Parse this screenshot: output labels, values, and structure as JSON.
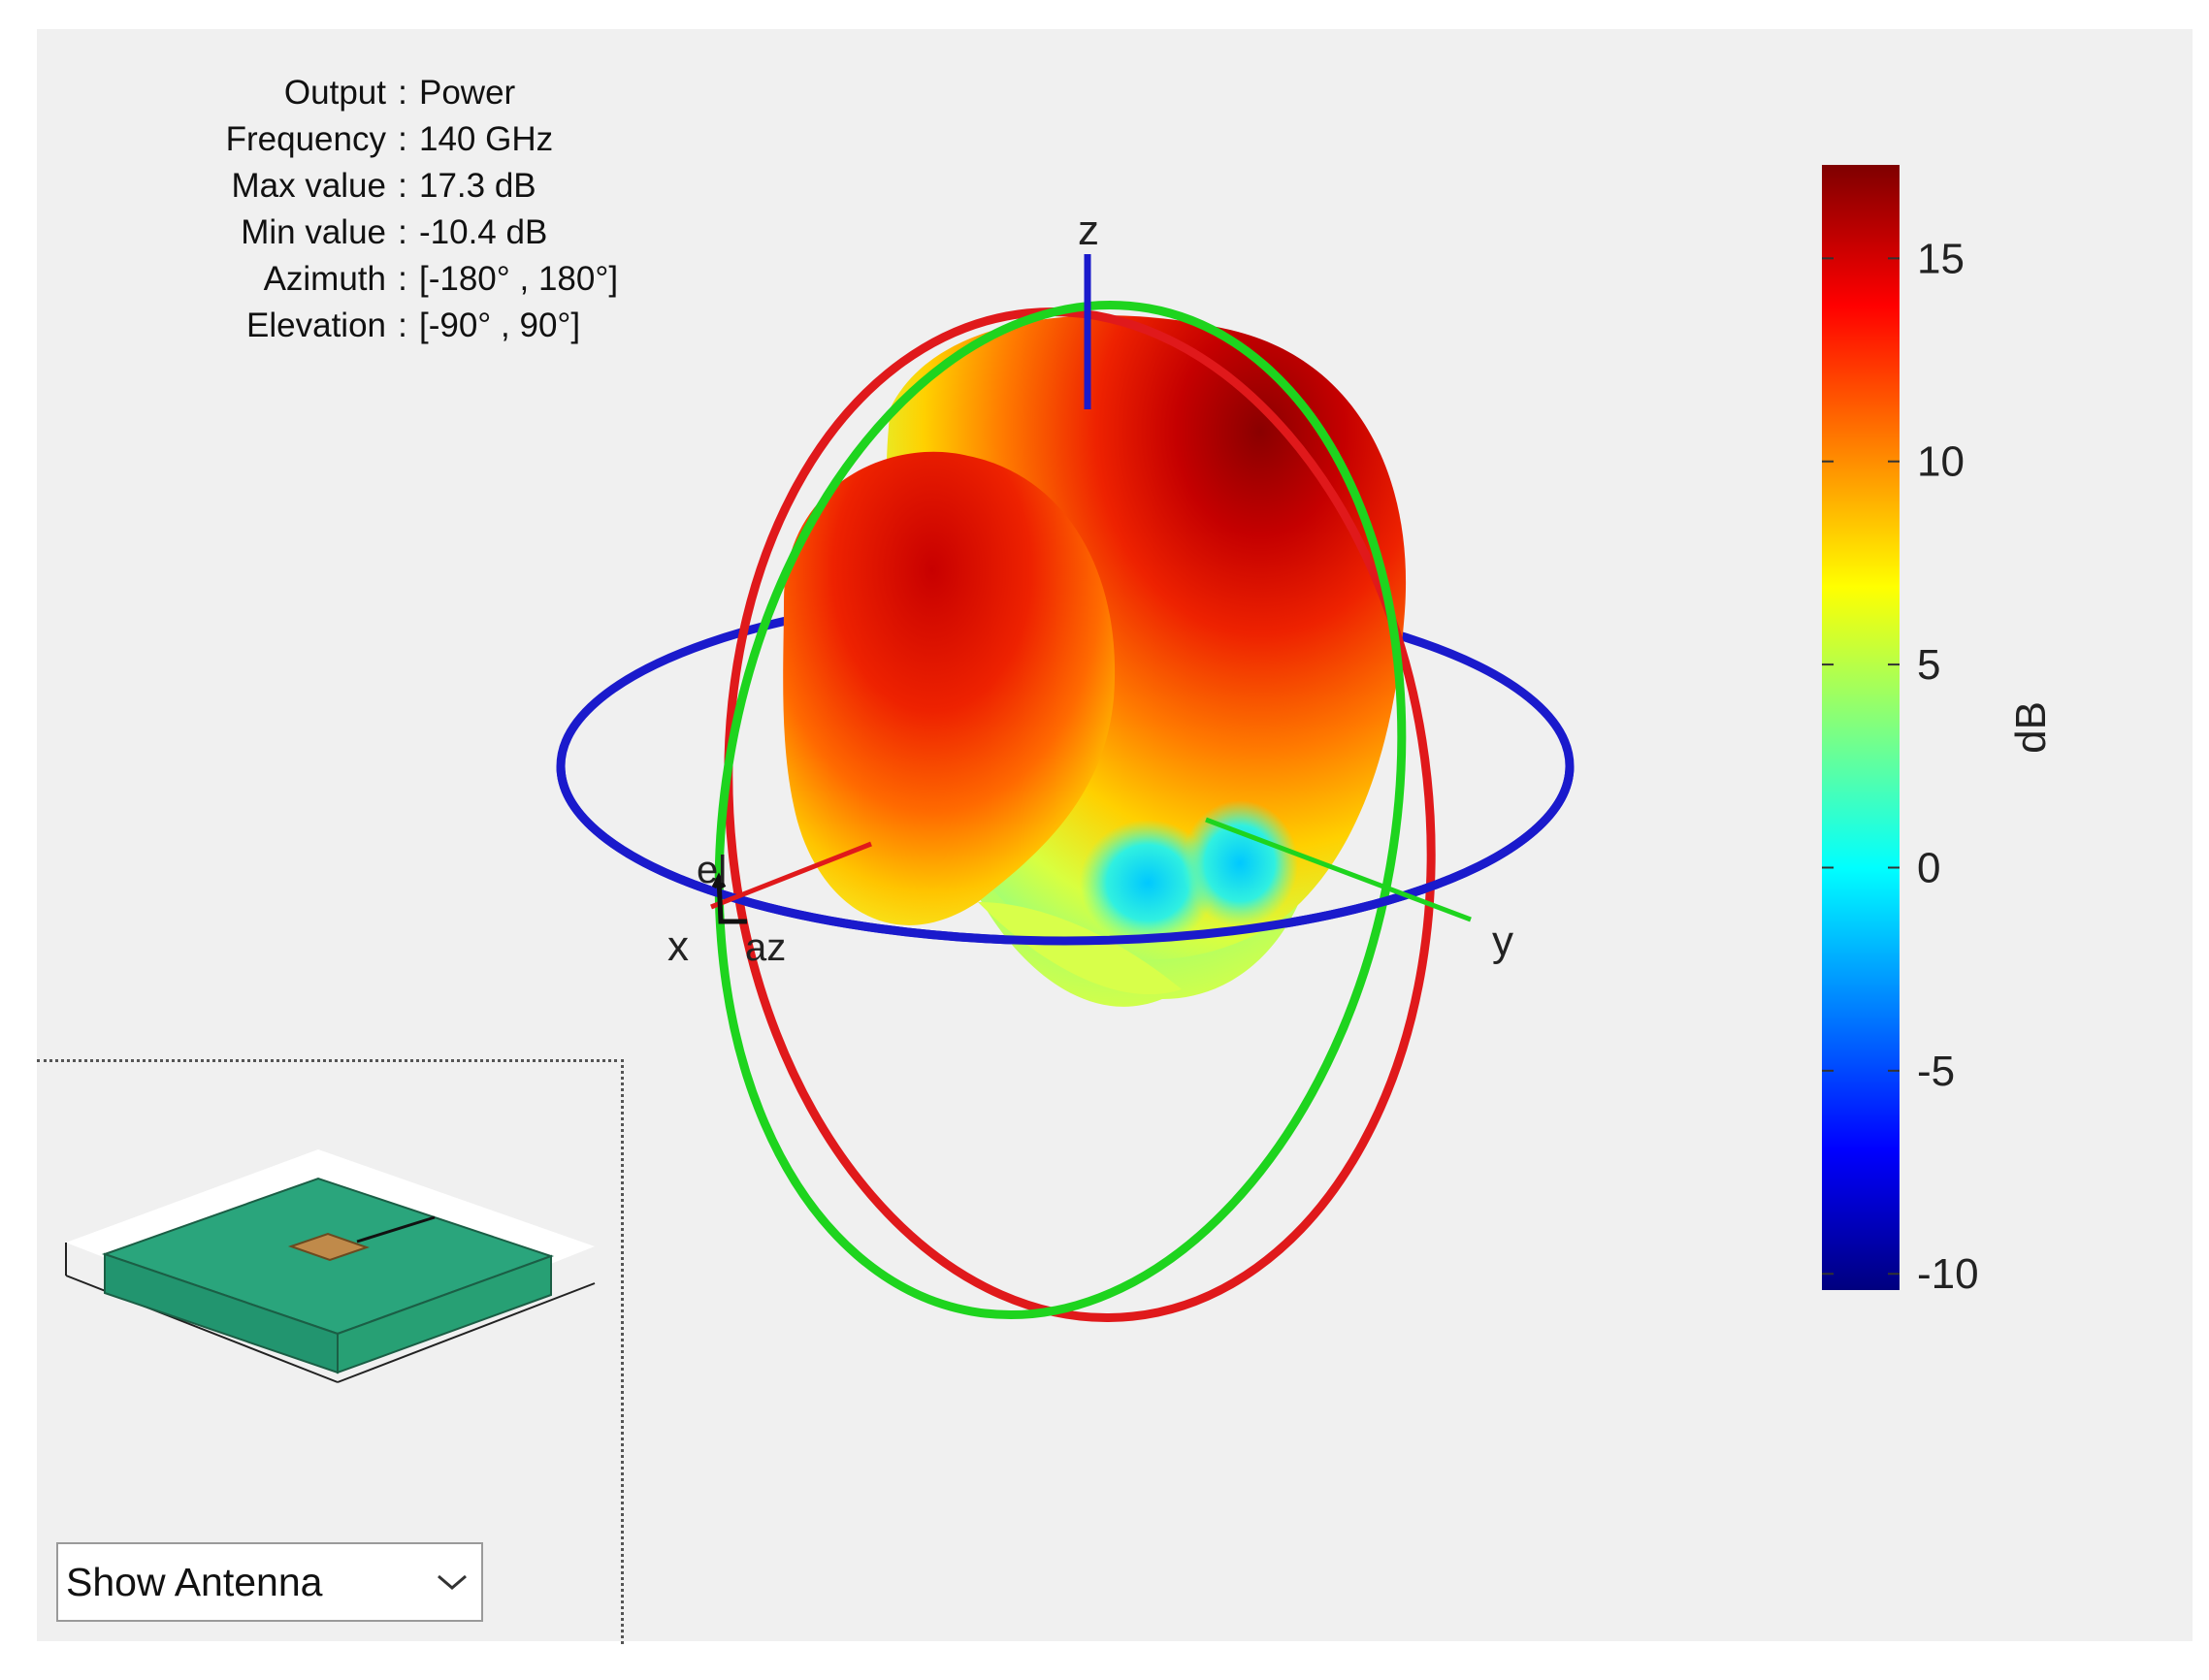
{
  "info": {
    "rows": [
      {
        "label": "Output",
        "value": "Power"
      },
      {
        "label": "Frequency",
        "value": "140 GHz"
      },
      {
        "label": "Max value",
        "value": "17.3 dB"
      },
      {
        "label": "Min value",
        "value": "-10.4 dB"
      },
      {
        "label": "Azimuth",
        "value": "[-180° , 180°]"
      },
      {
        "label": "Elevation",
        "value": "[-90° , 90°]"
      }
    ],
    "separator": ":"
  },
  "axes": {
    "x": "x",
    "y": "y",
    "z": "z",
    "az": "az",
    "el": "el"
  },
  "view_select": {
    "value": "Show Antenna"
  },
  "colors": {
    "x_axis": "#e0191b",
    "y_axis": "#1ed41e",
    "z_axis": "#1a1acc",
    "substrate": "#2aa57c",
    "patch": "#c08a4a"
  },
  "chart_data": {
    "type": "heatmap",
    "title": "",
    "output": "Power",
    "frequency_GHz": 140,
    "max_value_dB": 17.3,
    "min_value_dB": -10.4,
    "azimuth_range_deg": [
      -180,
      180
    ],
    "elevation_range_deg": [
      -90,
      90
    ],
    "colorbar": {
      "label": "dB",
      "colormap": "jet",
      "range": [
        -10.4,
        17.3
      ],
      "ticks": [
        -10,
        -5,
        0,
        5,
        10,
        15
      ]
    }
  }
}
